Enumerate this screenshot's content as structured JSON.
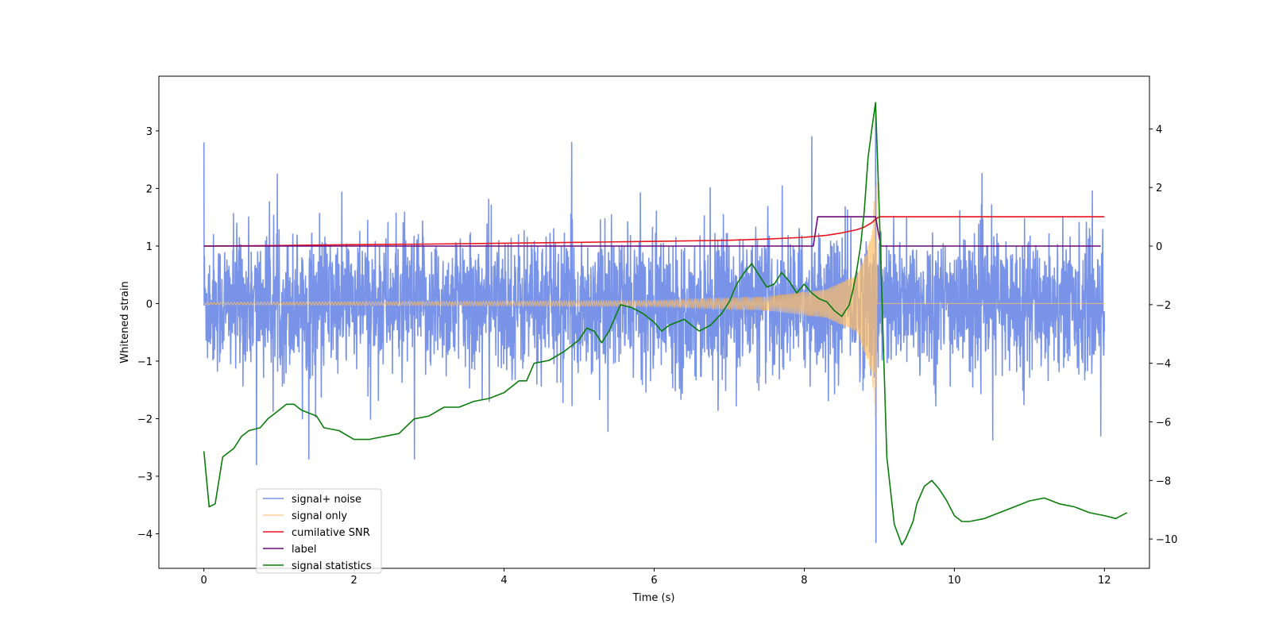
{
  "chart_data": {
    "type": "line",
    "title": "",
    "xlabel": "Time (s)",
    "ylabel": "Whitened strain",
    "y2label": "",
    "xlim": [
      -0.6,
      12.6
    ],
    "ylim": [
      -4.6,
      3.95
    ],
    "y2lim": [
      -11.0,
      5.8
    ],
    "xticks": [
      0,
      2,
      4,
      6,
      8,
      10,
      12
    ],
    "yticks": [
      -4,
      -3,
      -2,
      -1,
      0,
      1,
      2,
      3
    ],
    "y2ticks": [
      -10,
      -8,
      -6,
      -4,
      -2,
      0,
      2,
      4
    ],
    "grid": false,
    "legend_position": "lower-left",
    "series": [
      {
        "name": "signal+ noise",
        "color": "#4b6fe0",
        "axis": "left",
        "kind": "noise",
        "x_range": [
          0,
          12
        ],
        "typical_amplitude": 1.3,
        "peak_values": [
          {
            "x": 0.0,
            "y": 2.8
          },
          {
            "x": 0.7,
            "y": -2.8
          },
          {
            "x": 1.4,
            "y": -2.7
          },
          {
            "x": 2.8,
            "y": -2.7
          },
          {
            "x": 4.9,
            "y": 2.8
          },
          {
            "x": 8.1,
            "y": 2.9
          },
          {
            "x": 8.95,
            "y": 3.4
          },
          {
            "x": 8.95,
            "y": -4.15
          },
          {
            "x": 11.95,
            "y": -2.3
          }
        ]
      },
      {
        "name": "signal only",
        "color": "#ffbf66",
        "axis": "left",
        "kind": "chirp",
        "x_range": [
          0,
          12
        ],
        "merger_time": 8.97,
        "envelope": [
          {
            "x": 0.0,
            "y": 0.02
          },
          {
            "x": 6.0,
            "y": 0.05
          },
          {
            "x": 7.5,
            "y": 0.12
          },
          {
            "x": 8.3,
            "y": 0.25
          },
          {
            "x": 8.7,
            "y": 0.5
          },
          {
            "x": 8.9,
            "y": 1.2
          },
          {
            "x": 8.97,
            "y": 2.6
          }
        ]
      },
      {
        "name": "cumilative SNR",
        "color": "#e8141e",
        "axis": "right",
        "points": [
          [
            0.0,
            0.0
          ],
          [
            1.0,
            0.02
          ],
          [
            2.0,
            0.05
          ],
          [
            3.0,
            0.07
          ],
          [
            4.0,
            0.1
          ],
          [
            5.0,
            0.13
          ],
          [
            6.0,
            0.16
          ],
          [
            7.0,
            0.2
          ],
          [
            7.5,
            0.24
          ],
          [
            8.0,
            0.3
          ],
          [
            8.3,
            0.37
          ],
          [
            8.5,
            0.45
          ],
          [
            8.7,
            0.56
          ],
          [
            8.8,
            0.65
          ],
          [
            8.9,
            0.8
          ],
          [
            8.95,
            0.92
          ],
          [
            9.0,
            1.0
          ],
          [
            12.0,
            1.0
          ]
        ]
      },
      {
        "name": "label",
        "color": "#6a0a7a",
        "axis": "right",
        "points": [
          [
            0.0,
            0.0
          ],
          [
            8.12,
            0.0
          ],
          [
            8.18,
            1.0
          ],
          [
            8.95,
            1.0
          ],
          [
            9.02,
            0.0
          ],
          [
            11.95,
            0.0
          ]
        ]
      },
      {
        "name": "signal statistics",
        "color": "#0a7d0a",
        "axis": "right",
        "points": [
          [
            0.0,
            -7.0
          ],
          [
            0.07,
            -8.9
          ],
          [
            0.15,
            -8.8
          ],
          [
            0.25,
            -7.2
          ],
          [
            0.4,
            -6.9
          ],
          [
            0.5,
            -6.5
          ],
          [
            0.6,
            -6.3
          ],
          [
            0.75,
            -6.2
          ],
          [
            0.85,
            -5.9
          ],
          [
            1.0,
            -5.6
          ],
          [
            1.1,
            -5.4
          ],
          [
            1.2,
            -5.4
          ],
          [
            1.3,
            -5.6
          ],
          [
            1.4,
            -5.7
          ],
          [
            1.5,
            -5.8
          ],
          [
            1.6,
            -6.2
          ],
          [
            1.8,
            -6.3
          ],
          [
            2.0,
            -6.6
          ],
          [
            2.2,
            -6.6
          ],
          [
            2.4,
            -6.5
          ],
          [
            2.6,
            -6.4
          ],
          [
            2.8,
            -5.9
          ],
          [
            3.0,
            -5.8
          ],
          [
            3.2,
            -5.5
          ],
          [
            3.4,
            -5.5
          ],
          [
            3.6,
            -5.3
          ],
          [
            3.8,
            -5.2
          ],
          [
            4.0,
            -5.0
          ],
          [
            4.2,
            -4.6
          ],
          [
            4.3,
            -4.6
          ],
          [
            4.4,
            -4.0
          ],
          [
            4.6,
            -3.9
          ],
          [
            4.8,
            -3.6
          ],
          [
            5.0,
            -3.2
          ],
          [
            5.1,
            -2.8
          ],
          [
            5.2,
            -2.9
          ],
          [
            5.3,
            -3.3
          ],
          [
            5.4,
            -2.9
          ],
          [
            5.55,
            -2.0
          ],
          [
            5.7,
            -2.1
          ],
          [
            5.85,
            -2.3
          ],
          [
            6.0,
            -2.6
          ],
          [
            6.1,
            -2.9
          ],
          [
            6.2,
            -2.7
          ],
          [
            6.4,
            -2.5
          ],
          [
            6.5,
            -2.7
          ],
          [
            6.6,
            -2.9
          ],
          [
            6.75,
            -2.7
          ],
          [
            6.9,
            -2.3
          ],
          [
            7.0,
            -1.9
          ],
          [
            7.1,
            -1.3
          ],
          [
            7.2,
            -0.9
          ],
          [
            7.3,
            -0.6
          ],
          [
            7.4,
            -1.0
          ],
          [
            7.5,
            -1.4
          ],
          [
            7.6,
            -1.3
          ],
          [
            7.7,
            -0.9
          ],
          [
            7.8,
            -1.2
          ],
          [
            7.9,
            -1.6
          ],
          [
            8.0,
            -1.3
          ],
          [
            8.1,
            -1.6
          ],
          [
            8.2,
            -1.8
          ],
          [
            8.3,
            -1.9
          ],
          [
            8.4,
            -2.2
          ],
          [
            8.5,
            -2.4
          ],
          [
            8.6,
            -2.0
          ],
          [
            8.65,
            -1.5
          ],
          [
            8.7,
            -0.8
          ],
          [
            8.75,
            0.0
          ],
          [
            8.8,
            1.2
          ],
          [
            8.85,
            3.0
          ],
          [
            8.9,
            4.0
          ],
          [
            8.95,
            4.9
          ],
          [
            9.0,
            1.2
          ],
          [
            9.05,
            -3.0
          ],
          [
            9.1,
            -7.2
          ],
          [
            9.2,
            -9.5
          ],
          [
            9.3,
            -10.2
          ],
          [
            9.35,
            -10.0
          ],
          [
            9.45,
            -9.4
          ],
          [
            9.5,
            -8.8
          ],
          [
            9.6,
            -8.2
          ],
          [
            9.7,
            -8.0
          ],
          [
            9.8,
            -8.3
          ],
          [
            9.9,
            -8.7
          ],
          [
            10.0,
            -9.2
          ],
          [
            10.1,
            -9.4
          ],
          [
            10.2,
            -9.4
          ],
          [
            10.4,
            -9.3
          ],
          [
            10.6,
            -9.1
          ],
          [
            10.8,
            -8.9
          ],
          [
            11.0,
            -8.7
          ],
          [
            11.2,
            -8.6
          ],
          [
            11.4,
            -8.8
          ],
          [
            11.6,
            -8.9
          ],
          [
            11.8,
            -9.1
          ],
          [
            12.0,
            -9.2
          ],
          [
            12.15,
            -9.3
          ],
          [
            12.3,
            -9.1
          ]
        ]
      }
    ]
  }
}
